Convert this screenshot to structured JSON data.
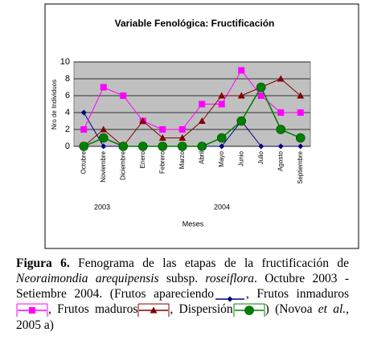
{
  "chart_data": {
    "type": "line",
    "title": "Variable Fenológica: Fructificación",
    "y_label": "Nro de Individuos",
    "x_label": "Meses",
    "annotations": [
      "2003",
      "2004"
    ],
    "categories": [
      "Octubre",
      "Noviembre",
      "Diciembre",
      "Enero",
      "Febrero",
      "Marzo",
      "Abril",
      "Mayo",
      "Junio",
      "Julio",
      "Agosto",
      "Septiembre"
    ],
    "series": [
      {
        "name": "Frutos apareciendo",
        "color": "#000080",
        "marker": "diamond",
        "values": [
          4,
          0,
          0,
          0,
          0,
          0,
          0,
          0,
          3,
          0,
          0,
          0
        ]
      },
      {
        "name": "Frutos inmaduros",
        "color": "#ff00ff",
        "marker": "square",
        "values": [
          2,
          7,
          6,
          3,
          2,
          2,
          5,
          5,
          9,
          6,
          4,
          4
        ]
      },
      {
        "name": "Frutos maduros",
        "color": "#800000",
        "marker": "triangle",
        "values": [
          0,
          2,
          0,
          3,
          1,
          1,
          3,
          6,
          6,
          7,
          8,
          6
        ]
      },
      {
        "name": "Dispersión",
        "color": "#008000",
        "marker": "circle",
        "values": [
          0,
          1,
          0,
          0,
          0,
          0,
          0,
          1,
          3,
          7,
          2,
          1
        ]
      }
    ],
    "ylim": [
      0,
      10
    ],
    "yticks": [
      0,
      2,
      4,
      6,
      8,
      10
    ],
    "grid": true
  },
  "caption": [
    "Figura 6.",
    " Fenograma de las etapas de la fructificación de ",
    "Neoraimondia arequipensis",
    " subsp. ",
    "roseiflora",
    ". Octubre 2003 - Setiembre 2004. (",
    ", ",
    ", ",
    ", ",
    ") (Novoa ",
    "et al.",
    ", 2005 a)"
  ]
}
